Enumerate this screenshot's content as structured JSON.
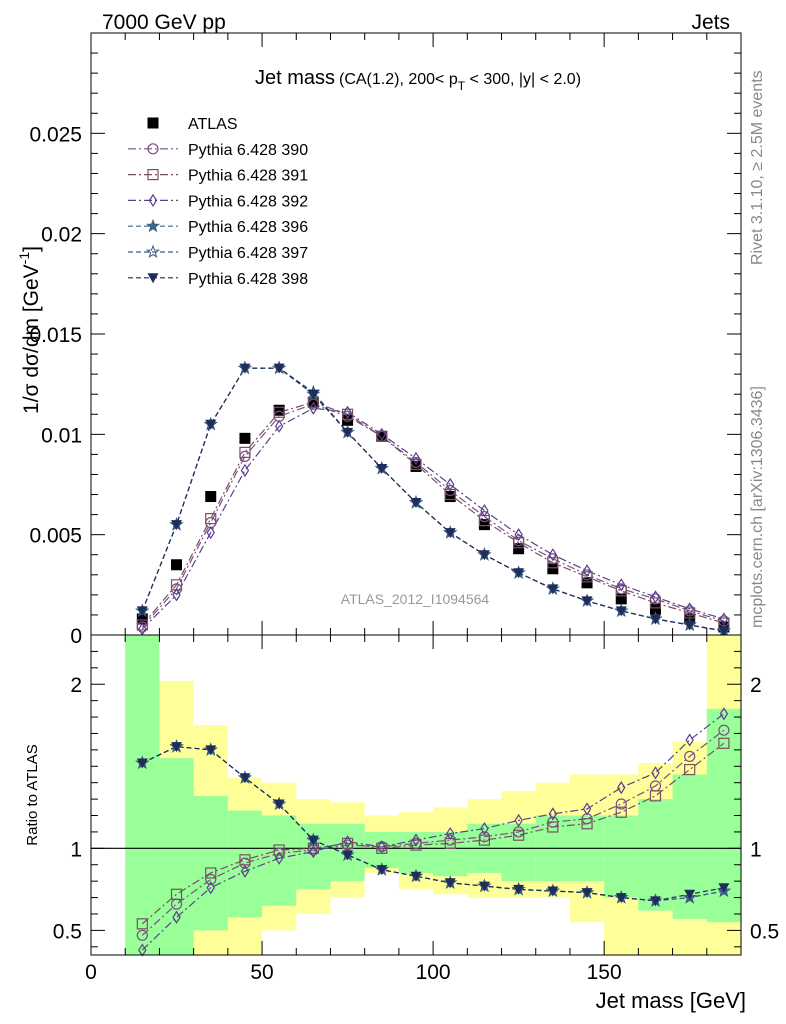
{
  "header": {
    "left": "7000 GeV pp",
    "right": "Jets",
    "side_top": "Rivet 3.1.10, ≥ 2.5M events",
    "side_bottom": "mcplots.cern.ch [arXiv:1306.3436]"
  },
  "colors": {
    "atlas": "#000000",
    "p390": "#7a4f86",
    "p391": "#7a4f62",
    "p392": "#5a3f8c",
    "p396": "#3c6680",
    "p397": "#3c5a80",
    "p398": "#1e2e5a",
    "band_inner": "#99ff99",
    "band_outer": "#ffff99"
  },
  "chart_data": [
    {
      "type": "scatter",
      "title_main": "Jet mass",
      "title_sub": "(CA(1.2), 200< p",
      "title_sub_idx": "T",
      "title_sub_end": " < 300, |y| < 2.0)",
      "ylabel": "1/σ dσ/dm [GeV",
      "ylabel_sup": "-1",
      "ylabel_end": "]",
      "watermark": "ATLAS_2012_I1094564",
      "xlim": [
        0,
        190
      ],
      "ylim": [
        0,
        0.03
      ],
      "yticks": [
        0,
        0.005,
        0.01,
        0.015,
        0.02,
        0.025
      ],
      "ytick_labels": [
        "0",
        "0.005",
        "0.01",
        "0.015",
        "0.02",
        "0.025"
      ],
      "x": [
        15,
        25,
        35,
        45,
        55,
        65,
        75,
        85,
        95,
        105,
        115,
        125,
        135,
        145,
        155,
        165,
        175,
        185
      ],
      "series": [
        {
          "name": "ATLAS",
          "key": "atlas",
          "marker": "square-filled",
          "line": "none",
          "values": [
            0.0008,
            0.0035,
            0.0069,
            0.0098,
            0.0112,
            0.0116,
            0.0107,
            0.0099,
            0.0084,
            0.0069,
            0.0055,
            0.0043,
            0.0033,
            0.0026,
            0.0018,
            0.0013,
            0.0008,
            0.0004
          ]
        },
        {
          "name": "Pythia 6.428 390",
          "key": "p390",
          "marker": "circle-open",
          "line": "dashdot",
          "values": [
            0.0004,
            0.0023,
            0.0056,
            0.0089,
            0.0109,
            0.0115,
            0.0109,
            0.0099,
            0.0086,
            0.0072,
            0.0059,
            0.0047,
            0.0038,
            0.003,
            0.0023,
            0.0018,
            0.0012,
            0.0007
          ]
        },
        {
          "name": "Pythia 6.428 391",
          "key": "p391",
          "marker": "square-open",
          "line": "dashdot",
          "values": [
            0.0005,
            0.0025,
            0.0058,
            0.0091,
            0.0111,
            0.0116,
            0.011,
            0.0099,
            0.0085,
            0.007,
            0.0057,
            0.0046,
            0.0036,
            0.0029,
            0.0022,
            0.0016,
            0.0011,
            0.0006
          ]
        },
        {
          "name": "Pythia 6.428 392",
          "key": "p392",
          "marker": "diamond-open",
          "line": "dashdot",
          "values": [
            0.0003,
            0.002,
            0.0051,
            0.0082,
            0.0104,
            0.0113,
            0.0111,
            0.01,
            0.0088,
            0.0075,
            0.0062,
            0.005,
            0.004,
            0.0032,
            0.0025,
            0.0019,
            0.0013,
            0.0008
          ]
        },
        {
          "name": "Pythia 6.428 396",
          "key": "p396",
          "marker": "star-filled",
          "line": "dashed",
          "values": [
            0.0012,
            0.0055,
            0.0105,
            0.0133,
            0.0133,
            0.012,
            0.0101,
            0.0083,
            0.0066,
            0.0051,
            0.004,
            0.0031,
            0.0023,
            0.0017,
            0.0012,
            0.0008,
            0.0005,
            0.0002
          ]
        },
        {
          "name": "Pythia 6.428 397",
          "key": "p397",
          "marker": "star-open",
          "line": "dashed",
          "values": [
            0.0012,
            0.0055,
            0.0105,
            0.0133,
            0.0133,
            0.0121,
            0.0101,
            0.0083,
            0.0066,
            0.0051,
            0.004,
            0.0031,
            0.0023,
            0.0017,
            0.0012,
            0.0008,
            0.0005,
            0.0002
          ]
        },
        {
          "name": "Pythia 6.428 398",
          "key": "p398",
          "marker": "triangle-down-filled",
          "line": "dashed",
          "values": [
            0.0012,
            0.0055,
            0.0105,
            0.0133,
            0.0133,
            0.012,
            0.0101,
            0.0083,
            0.0066,
            0.0051,
            0.004,
            0.0031,
            0.0023,
            0.0017,
            0.0012,
            0.0008,
            0.0005,
            0.0002
          ]
        }
      ]
    },
    {
      "type": "scatter",
      "ylabel": "Ratio to ATLAS",
      "xlabel": "Jet mass [GeV]",
      "xlim": [
        0,
        190
      ],
      "ylim": [
        0.35,
        2.3
      ],
      "xticks": [
        0,
        50,
        100,
        150
      ],
      "xtick_labels": [
        "0",
        "50",
        "100",
        "150"
      ],
      "yticks": [
        0.5,
        1,
        2
      ],
      "ytick_labels": [
        "0.5",
        "1",
        "2"
      ],
      "reference_line": 1,
      "bins": [
        [
          10,
          20
        ],
        [
          20,
          30
        ],
        [
          30,
          40
        ],
        [
          40,
          50
        ],
        [
          50,
          60
        ],
        [
          60,
          70
        ],
        [
          70,
          80
        ],
        [
          80,
          90
        ],
        [
          90,
          100
        ],
        [
          100,
          110
        ],
        [
          110,
          120
        ],
        [
          120,
          130
        ],
        [
          130,
          140
        ],
        [
          140,
          150
        ],
        [
          150,
          160
        ],
        [
          160,
          170
        ],
        [
          170,
          180
        ],
        [
          180,
          190
        ]
      ],
      "band_inner": [
        [
          0.35,
          2.3
        ],
        [
          0.35,
          1.55
        ],
        [
          0.5,
          1.32
        ],
        [
          0.58,
          1.23
        ],
        [
          0.65,
          1.2
        ],
        [
          0.75,
          1.15
        ],
        [
          0.8,
          1.15
        ],
        [
          0.88,
          1.1
        ],
        [
          0.85,
          1.1
        ],
        [
          0.83,
          1.1
        ],
        [
          0.85,
          1.15
        ],
        [
          0.8,
          1.15
        ],
        [
          0.8,
          1.2
        ],
        [
          0.8,
          1.2
        ],
        [
          0.7,
          1.2
        ],
        [
          0.62,
          1.3
        ],
        [
          0.57,
          1.45
        ],
        [
          0.55,
          1.85
        ]
      ],
      "band_outer": [
        [
          0.35,
          2.3
        ],
        [
          0.35,
          2.02
        ],
        [
          0.35,
          1.75
        ],
        [
          0.35,
          1.43
        ],
        [
          0.5,
          1.4
        ],
        [
          0.6,
          1.3
        ],
        [
          0.7,
          1.28
        ],
        [
          0.85,
          1.2
        ],
        [
          0.75,
          1.22
        ],
        [
          0.72,
          1.25
        ],
        [
          0.7,
          1.3
        ],
        [
          0.7,
          1.35
        ],
        [
          0.7,
          1.4
        ],
        [
          0.55,
          1.45
        ],
        [
          0.35,
          1.45
        ],
        [
          0.35,
          1.52
        ],
        [
          0.35,
          1.65
        ],
        [
          0.35,
          2.3
        ]
      ],
      "series": [
        {
          "key": "p390",
          "marker": "circle-open",
          "line": "dashdot",
          "values": [
            0.47,
            0.66,
            0.81,
            0.91,
            0.97,
            0.99,
            1.02,
            1.01,
            1.03,
            1.05,
            1.07,
            1.1,
            1.16,
            1.18,
            1.27,
            1.38,
            1.56,
            1.72
          ]
        },
        {
          "key": "p391",
          "marker": "square-open",
          "line": "dashdot",
          "values": [
            0.54,
            0.72,
            0.85,
            0.93,
            0.99,
            1.0,
            1.03,
            1.0,
            1.02,
            1.03,
            1.05,
            1.08,
            1.13,
            1.15,
            1.22,
            1.32,
            1.48,
            1.64
          ]
        },
        {
          "key": "p392",
          "marker": "diamond-open",
          "line": "dashdot",
          "values": [
            0.38,
            0.58,
            0.76,
            0.86,
            0.94,
            0.98,
            1.04,
            1.01,
            1.05,
            1.09,
            1.12,
            1.17,
            1.21,
            1.24,
            1.37,
            1.46,
            1.66,
            1.82
          ]
        },
        {
          "key": "p396",
          "marker": "star-filled",
          "line": "dashed",
          "values": [
            1.52,
            1.62,
            1.6,
            1.43,
            1.27,
            1.05,
            0.96,
            0.87,
            0.83,
            0.79,
            0.77,
            0.75,
            0.74,
            0.73,
            0.7,
            0.68,
            0.7,
            0.74
          ]
        },
        {
          "key": "p397",
          "marker": "star-open",
          "line": "dashed",
          "values": [
            1.52,
            1.62,
            1.6,
            1.43,
            1.27,
            1.05,
            0.96,
            0.87,
            0.83,
            0.79,
            0.77,
            0.75,
            0.74,
            0.73,
            0.7,
            0.68,
            0.7,
            0.74
          ]
        },
        {
          "key": "p398",
          "marker": "triangle-down-filled",
          "line": "dashed",
          "values": [
            1.52,
            1.62,
            1.6,
            1.43,
            1.27,
            1.05,
            0.96,
            0.87,
            0.83,
            0.79,
            0.77,
            0.75,
            0.74,
            0.73,
            0.7,
            0.68,
            0.72,
            0.76
          ]
        }
      ]
    }
  ]
}
